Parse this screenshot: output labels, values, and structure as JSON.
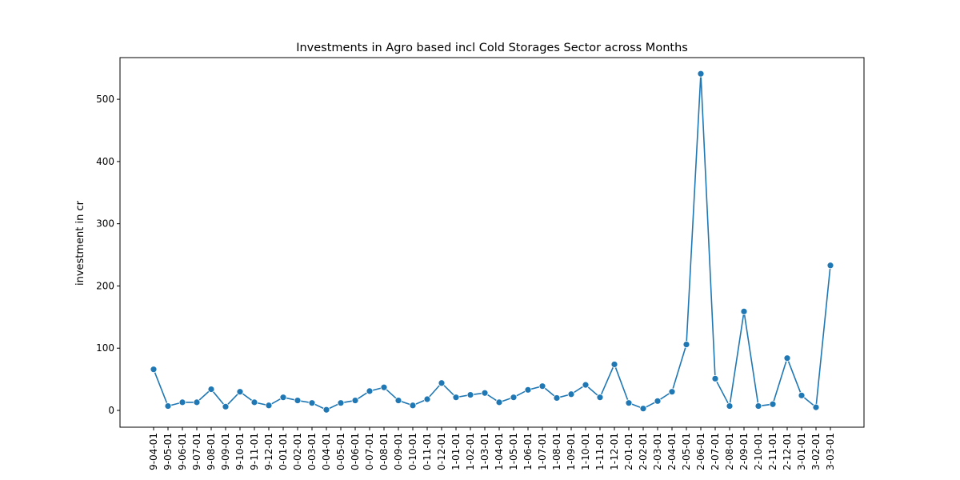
{
  "chart_data": {
    "type": "line",
    "title": "Investments in Agro based incl Cold Storages Sector across Months",
    "xlabel": "",
    "ylabel": "investment in cr",
    "ylim": [
      -27,
      567
    ],
    "yticks": [
      0,
      100,
      200,
      300,
      400,
      500
    ],
    "grid": false,
    "legend": "none",
    "color": "#1f77b4",
    "x": [
      "9-04-01",
      "9-05-01",
      "9-06-01",
      "9-07-01",
      "9-08-01",
      "9-09-01",
      "9-10-01",
      "9-11-01",
      "9-12-01",
      "0-01-01",
      "0-02-01",
      "0-03-01",
      "0-04-01",
      "0-05-01",
      "0-06-01",
      "0-07-01",
      "0-08-01",
      "0-09-01",
      "0-10-01",
      "0-11-01",
      "0-12-01",
      "1-01-01",
      "1-02-01",
      "1-03-01",
      "1-04-01",
      "1-05-01",
      "1-06-01",
      "1-07-01",
      "1-08-01",
      "1-09-01",
      "1-10-01",
      "1-11-01",
      "1-12-01",
      "2-01-01",
      "2-02-01",
      "2-03-01",
      "2-04-01",
      "2-05-01",
      "2-06-01",
      "2-07-01",
      "2-08-01",
      "2-09-01",
      "2-10-01",
      "2-11-01",
      "2-12-01",
      "3-01-01",
      "3-02-01",
      "3-03-01"
    ],
    "values": [
      66,
      7,
      13,
      13,
      34,
      6,
      30,
      13,
      8,
      21,
      16,
      12,
      1,
      12,
      16,
      31,
      37,
      16,
      8,
      18,
      44,
      21,
      25,
      28,
      13,
      21,
      33,
      39,
      20,
      26,
      41,
      21,
      74,
      12,
      3,
      15,
      30,
      106,
      541,
      51,
      7,
      159,
      7,
      10,
      84,
      24,
      5,
      233
    ]
  }
}
